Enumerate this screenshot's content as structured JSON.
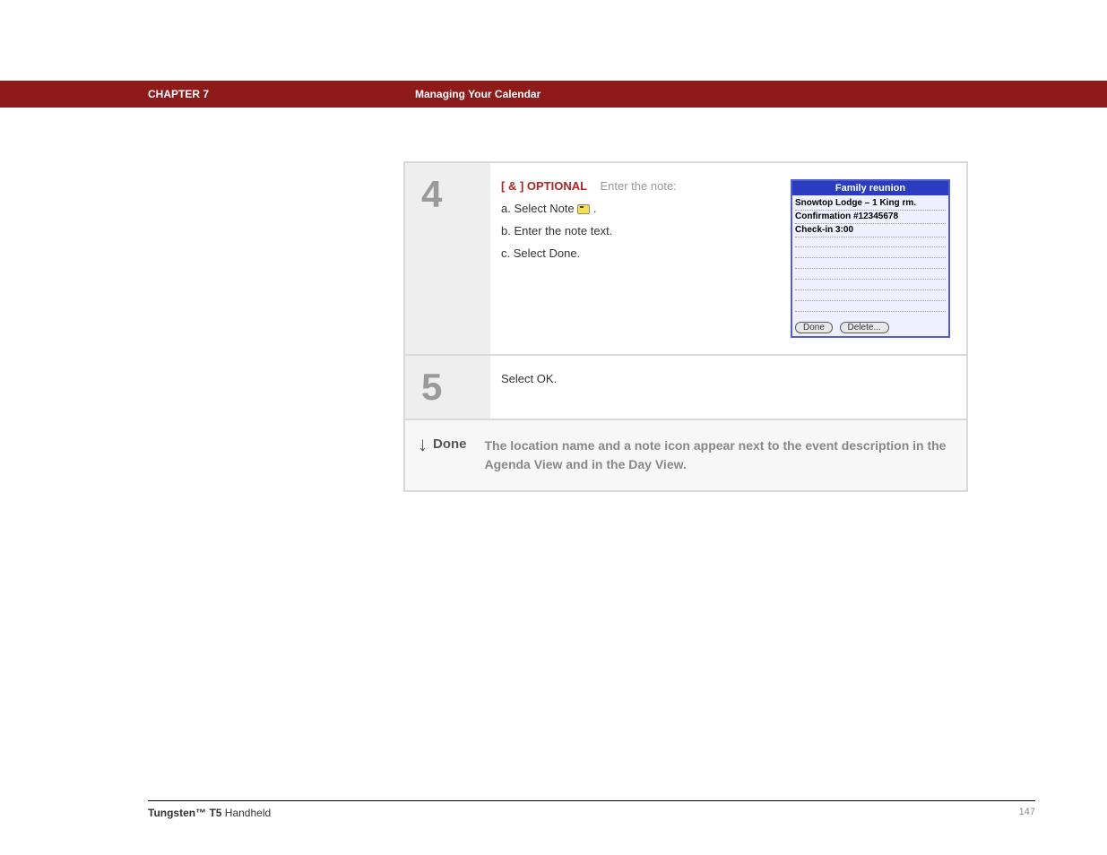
{
  "header": {
    "chapter": "CHAPTER 7",
    "section": "Managing Your Calendar"
  },
  "step4": {
    "number": "4",
    "optional_tag": "[ & ]  OPTIONAL",
    "optional_sub": "Enter the note:",
    "a": "a.  Select Note ",
    "a_suffix": ".",
    "b": "b.  Enter the note text.",
    "c": "c.  Select Done."
  },
  "palm": {
    "title": "Family reunion",
    "line1": "Snowtop Lodge – 1 King rm.",
    "line2": "Confirmation #12345678",
    "line3": "Check-in 3:00",
    "done": "Done",
    "delete": "Delete..."
  },
  "step5": {
    "number": "5",
    "text": "Select OK."
  },
  "done": {
    "label": "Done",
    "text": "The location name and a note icon appear next to the event description in the Agenda View and in the Day View."
  },
  "footer": {
    "product_bold": "Tungsten™ T5",
    "product_rest": " Handheld",
    "page": "147"
  }
}
